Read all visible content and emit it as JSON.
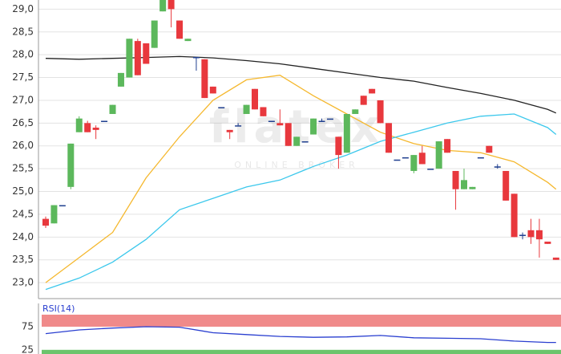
{
  "chart_data": [
    {
      "type": "candlestick",
      "watermark": "flatex",
      "watermark_sub": "ONLINE BROKER",
      "up_color": "#5cb85c",
      "down_color": "#e8383d",
      "flat_color": "#1f3f8f",
      "ylim": [
        22.65,
        29.2
      ],
      "yticks": [
        {
          "value": 23,
          "label": "23,0"
        },
        {
          "value": 23.5,
          "label": "23,5"
        },
        {
          "value": 24,
          "label": "24,0"
        },
        {
          "value": 24.5,
          "label": "24,5"
        },
        {
          "value": 25,
          "label": "25,0"
        },
        {
          "value": 25.5,
          "label": "25,5"
        },
        {
          "value": 26,
          "label": "26,0"
        },
        {
          "value": 26.5,
          "label": "26,5"
        },
        {
          "value": 27,
          "label": "27,0"
        },
        {
          "value": 27.5,
          "label": "27,5"
        },
        {
          "value": 28,
          "label": "28,0"
        },
        {
          "value": 28.5,
          "label": "28,5"
        },
        {
          "value": 29,
          "label": "29,0"
        }
      ],
      "grid": true,
      "open": [
        24.4,
        24.3,
        24.7,
        25.1,
        26.3,
        26.5,
        26.4,
        26.55,
        26.7,
        27.3,
        27.5,
        28.3,
        28.25,
        28.15,
        28.95,
        29.2,
        28.75,
        28.3,
        27.95,
        27.9,
        27.3,
        26.85,
        26.35,
        26.45,
        26.7,
        27.25,
        26.85,
        26.55,
        26.5,
        26.5,
        26.0,
        26.1,
        26.25,
        26.55,
        26.6,
        26.2,
        25.85,
        26.7,
        27.1,
        27.25,
        27.0,
        26.5,
        25.7,
        25.75,
        25.45,
        25.85,
        25.5,
        25.5,
        26.15,
        25.45,
        25.05,
        25.05,
        25.75,
        26.0,
        25.55,
        25.45,
        24.95,
        24.05,
        24.15,
        24.15,
        23.9,
        23.55
      ],
      "high": [
        24.45,
        24.7,
        24.7,
        26.05,
        26.65,
        26.55,
        26.45,
        26.55,
        26.9,
        27.6,
        28.35,
        28.35,
        28.25,
        28.75,
        29.2,
        29.2,
        28.75,
        28.35,
        27.95,
        27.9,
        27.3,
        26.85,
        26.35,
        26.5,
        26.9,
        27.25,
        26.85,
        26.55,
        26.8,
        26.5,
        26.2,
        26.1,
        26.6,
        26.6,
        26.6,
        26.2,
        26.7,
        26.8,
        27.1,
        27.25,
        27.0,
        26.5,
        25.7,
        25.75,
        25.8,
        26.0,
        25.5,
        26.1,
        26.15,
        25.45,
        25.5,
        25.1,
        25.75,
        26.0,
        25.6,
        25.45,
        24.95,
        24.1,
        24.4,
        24.4,
        23.9,
        23.55
      ],
      "low": [
        24.2,
        24.3,
        24.7,
        25.05,
        26.3,
        26.3,
        26.15,
        26.55,
        26.7,
        27.3,
        27.5,
        27.55,
        27.8,
        28.15,
        28.95,
        28.6,
        28.35,
        28.3,
        27.65,
        27.05,
        27.15,
        26.85,
        26.15,
        26.45,
        26.7,
        26.8,
        26.65,
        26.55,
        26.45,
        26.0,
        26.0,
        26.1,
        26.25,
        26.55,
        26.6,
        25.5,
        25.85,
        26.7,
        26.9,
        27.15,
        26.5,
        25.85,
        25.7,
        25.75,
        25.4,
        25.6,
        25.5,
        25.5,
        25.85,
        24.6,
        25.05,
        25.05,
        25.75,
        25.85,
        25.5,
        24.8,
        24.0,
        23.95,
        23.85,
        23.55,
        23.85,
        23.5
      ],
      "close": [
        24.25,
        24.7,
        24.7,
        26.05,
        26.6,
        26.3,
        26.35,
        26.55,
        26.9,
        27.6,
        28.35,
        27.55,
        27.8,
        28.75,
        29.2,
        29.0,
        28.35,
        28.35,
        27.95,
        27.05,
        27.15,
        26.85,
        26.3,
        26.45,
        26.9,
        26.8,
        26.65,
        26.55,
        26.45,
        26.0,
        26.2,
        26.1,
        26.6,
        26.55,
        26.6,
        25.8,
        26.7,
        26.8,
        26.9,
        27.15,
        26.5,
        25.85,
        25.7,
        25.75,
        25.8,
        25.6,
        25.5,
        26.1,
        25.85,
        25.05,
        25.25,
        25.1,
        25.75,
        25.85,
        25.55,
        24.8,
        24.0,
        24.05,
        24.0,
        23.95,
        23.85,
        23.5
      ],
      "lines": [
        {
          "color": "#222222",
          "x": [
            0,
            4,
            8,
            12,
            16,
            20,
            24,
            28,
            32,
            36,
            40,
            44,
            48,
            52,
            56,
            60,
            61
          ],
          "values": [
            27.92,
            27.9,
            27.92,
            27.94,
            27.96,
            27.93,
            27.87,
            27.8,
            27.7,
            27.6,
            27.5,
            27.42,
            27.28,
            27.15,
            27.0,
            26.8,
            26.72
          ]
        },
        {
          "color": "#f5b82e",
          "x": [
            0,
            4,
            8,
            12,
            16,
            20,
            24,
            28,
            32,
            36,
            40,
            44,
            48,
            52,
            56,
            60,
            61
          ],
          "values": [
            23.0,
            23.55,
            24.1,
            25.3,
            26.2,
            27.0,
            27.45,
            27.55,
            27.1,
            26.7,
            26.3,
            26.05,
            25.9,
            25.85,
            25.65,
            25.2,
            25.05
          ]
        },
        {
          "color": "#3cc8ec",
          "x": [
            0,
            4,
            8,
            12,
            16,
            20,
            24,
            28,
            32,
            36,
            40,
            44,
            48,
            52,
            56,
            60,
            61
          ],
          "values": [
            22.85,
            23.1,
            23.45,
            23.95,
            24.6,
            24.85,
            25.1,
            25.25,
            25.55,
            25.8,
            26.1,
            26.3,
            26.5,
            26.65,
            26.7,
            26.4,
            26.25
          ]
        }
      ]
    },
    {
      "type": "line",
      "title": "RSI(14)",
      "ylim": [
        16,
        101
      ],
      "yticks": [
        75,
        25
      ],
      "upper_color": "#f08a8a",
      "lower_color": "#6cc46c",
      "color": "#2a3fd0",
      "x": [
        0,
        4,
        8,
        12,
        16,
        20,
        24,
        28,
        32,
        36,
        40,
        44,
        48,
        52,
        56,
        60,
        61
      ],
      "values": [
        60,
        68,
        72,
        75,
        74,
        62,
        58,
        54,
        52,
        53,
        56,
        51,
        50,
        49,
        44,
        41,
        41
      ]
    }
  ]
}
